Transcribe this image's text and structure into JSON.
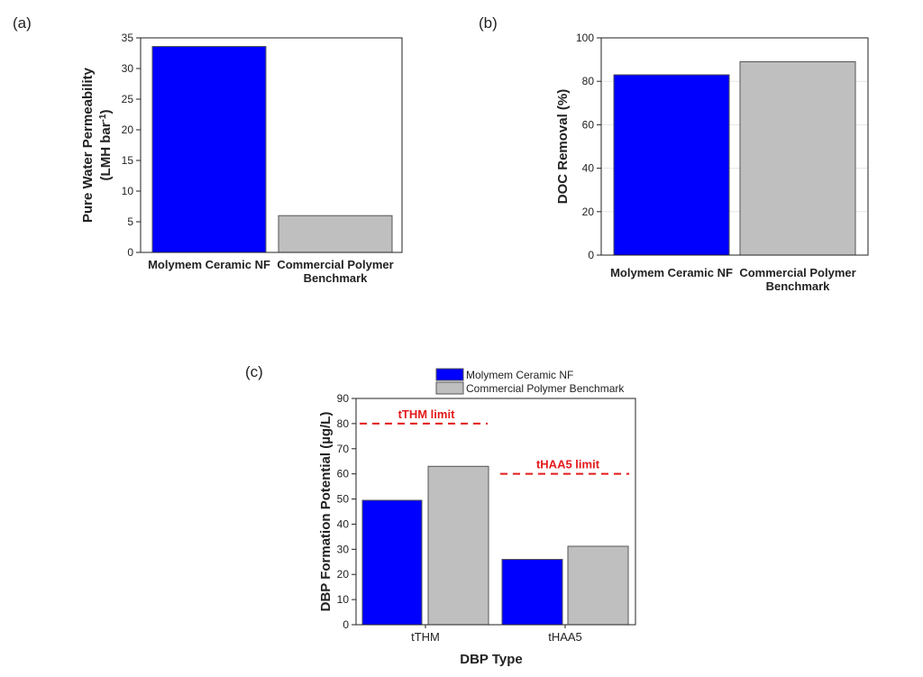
{
  "panel_labels": {
    "a": "(a)",
    "b": "(b)",
    "c": "(c)"
  },
  "colors": {
    "ceramic": "#0000ff",
    "polymer": "#bfbfbf",
    "limit": "#e31a1c"
  },
  "chart_data": [
    {
      "id": "a",
      "type": "bar",
      "categories": [
        [
          "Molymem Ceramic NF"
        ],
        [
          "Commercial Polymer",
          "Benchmark"
        ]
      ],
      "values": [
        33.6,
        6.0
      ],
      "ylabel_line1": "Pure Water Permeability",
      "ylabel_line2_main": "(LMH bar",
      "ylabel_line2_sup": "-1",
      "ylabel_line2_end": ")",
      "ylim": [
        0,
        35
      ],
      "yticks": [
        "0",
        "5",
        "10",
        "15",
        "20",
        "25",
        "30",
        "35"
      ],
      "grid": false
    },
    {
      "id": "b",
      "type": "bar",
      "categories": [
        [
          "Molymem Ceramic NF"
        ],
        [
          "Commercial Polymer",
          "Benchmark"
        ]
      ],
      "values": [
        83,
        89
      ],
      "ylabel": "DOC Removal (%)",
      "ylim": [
        0,
        100
      ],
      "yticks": [
        "0",
        "20",
        "40",
        "60",
        "80",
        "100"
      ],
      "grid": true
    },
    {
      "id": "c",
      "type": "bar",
      "categories": [
        "tTHM",
        "tHAA5"
      ],
      "series": [
        {
          "name": "Molymem Ceramic NF",
          "values": [
            49.5,
            26
          ]
        },
        {
          "name": "Commercial Polymer Benchmark",
          "values": [
            63,
            31.2
          ]
        }
      ],
      "limits": [
        {
          "label": "tTHM limit",
          "value": 80
        },
        {
          "label": "tHAA5 limit",
          "value": 60
        }
      ],
      "xlabel": "DBP Type",
      "ylabel": "DBP Formation Potential (µg/L)",
      "ylim": [
        0,
        90
      ],
      "yticks": [
        "0",
        "10",
        "20",
        "30",
        "40",
        "50",
        "60",
        "70",
        "80",
        "90"
      ],
      "legend_position": "top",
      "grid": false
    }
  ]
}
